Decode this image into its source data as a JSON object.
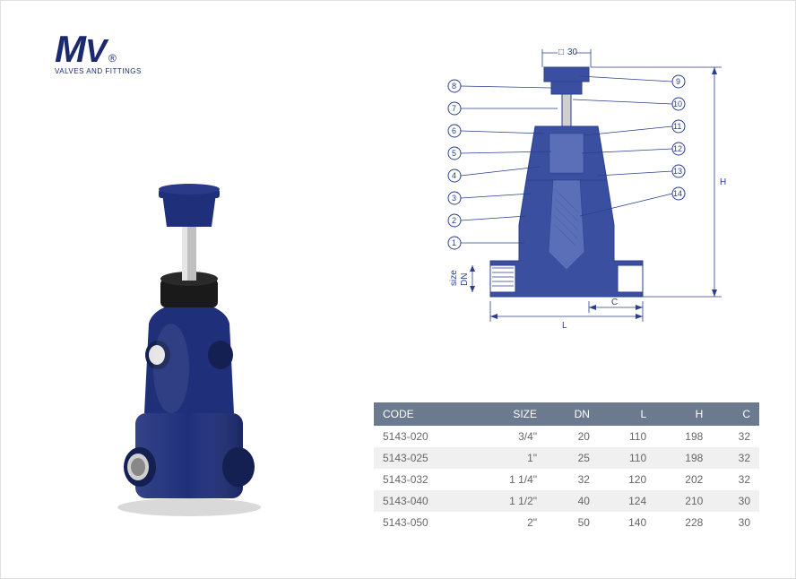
{
  "logo": {
    "brand_m": "M",
    "brand_v": "V",
    "reg": "®",
    "tagline": "VALVES AND FITTINGS",
    "color": "#1a2a6c"
  },
  "valve_visual": {
    "body_color": "#1f2f7a",
    "body_shade": "#141f52",
    "stem_color": "#c0c0c0",
    "packing_color": "#1a1a1a",
    "port_inner": "#d0d0d0"
  },
  "diagram": {
    "line_color": "#2a3f8f",
    "body_fill": "#3a4fa0",
    "section_fill": "#5a6fb8",
    "top_dim": "30",
    "callouts_left": [
      "8",
      "7",
      "6",
      "5",
      "4",
      "3",
      "2",
      "1"
    ],
    "callouts_right": [
      "9",
      "10",
      "11",
      "12",
      "13",
      "14"
    ],
    "dim_labels": {
      "size_dn": "size\nDN",
      "L": "L",
      "C": "C",
      "H": "H"
    }
  },
  "table": {
    "header_bg": "#6b7a8f",
    "header_color": "#ffffff",
    "row_even_bg": "#f0f0f0",
    "row_odd_bg": "#ffffff",
    "cell_color": "#666666",
    "columns": [
      "CODE",
      "SIZE",
      "DN",
      "L",
      "H",
      "C"
    ],
    "rows": [
      [
        "5143-020",
        "3/4\"",
        "20",
        "110",
        "198",
        "32"
      ],
      [
        "5143-025",
        "1\"",
        "25",
        "110",
        "198",
        "32"
      ],
      [
        "5143-032",
        "1 1/4\"",
        "32",
        "120",
        "202",
        "32"
      ],
      [
        "5143-040",
        "1 1/2\"",
        "40",
        "124",
        "210",
        "30"
      ],
      [
        "5143-050",
        "2\"",
        "50",
        "140",
        "228",
        "30"
      ]
    ]
  }
}
